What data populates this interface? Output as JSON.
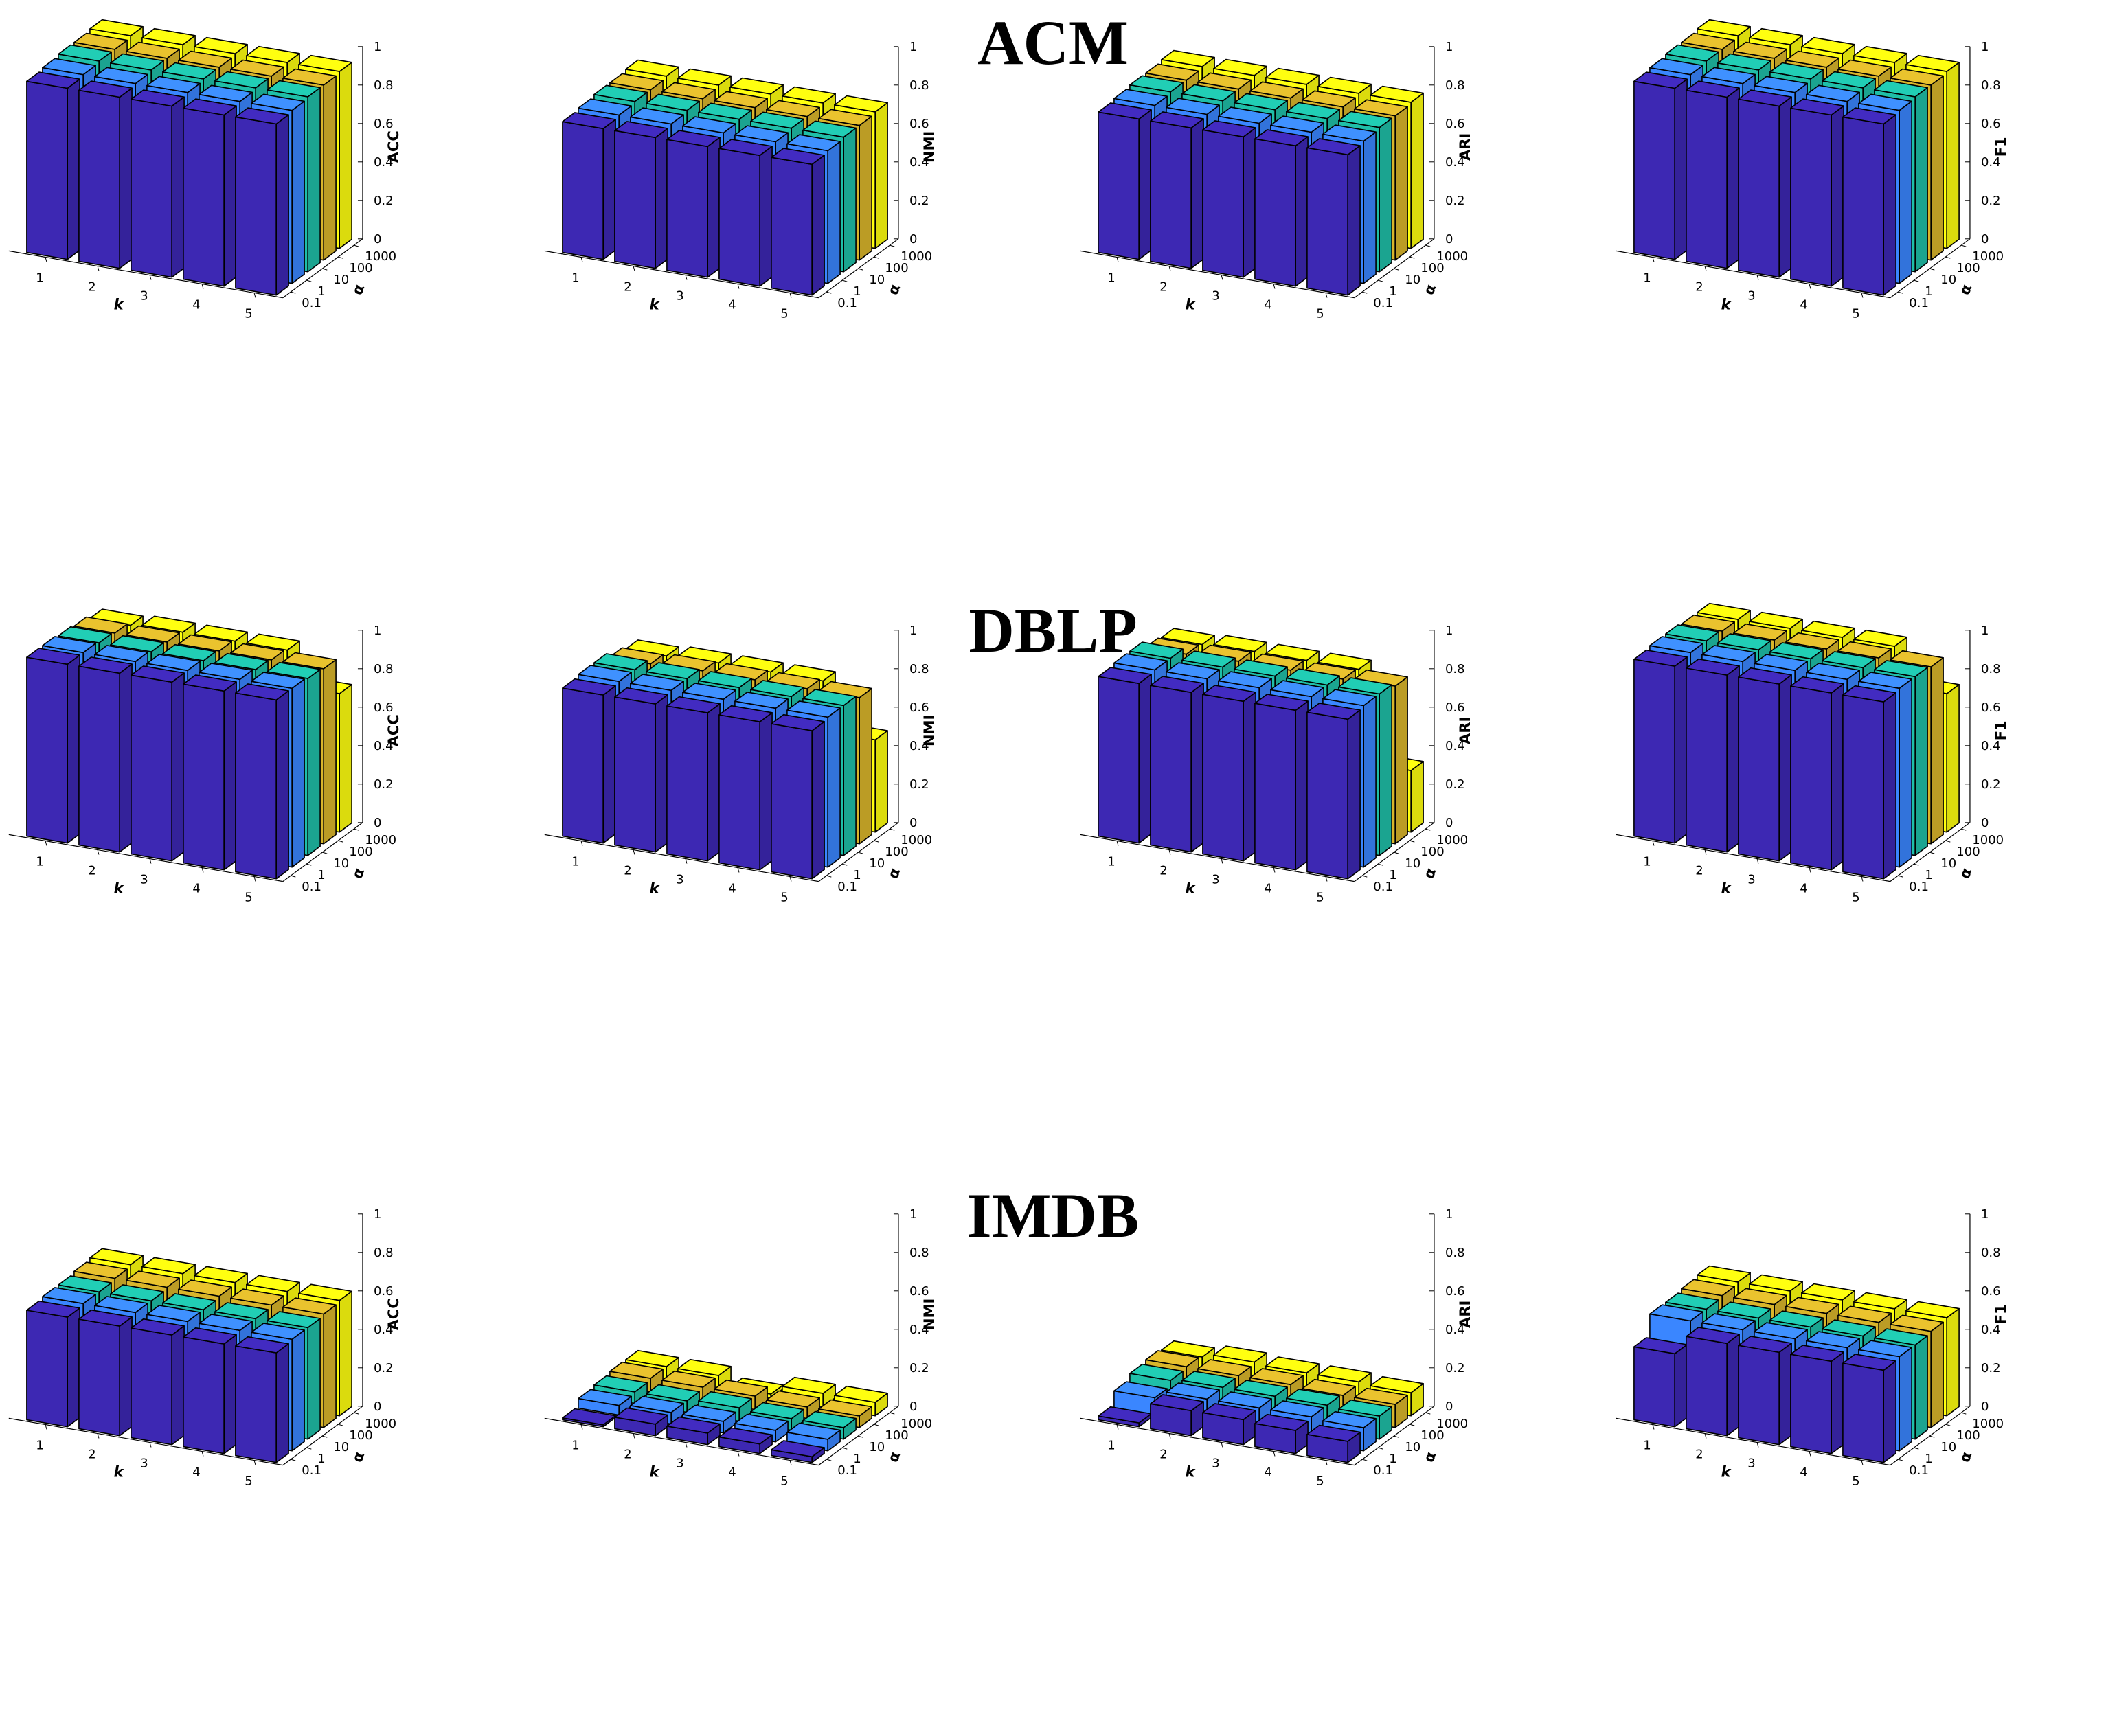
{
  "sections": [
    {
      "title": "ACM"
    },
    {
      "title": "DBLP"
    },
    {
      "title": "IMDB"
    }
  ],
  "colors": {
    "alpha_0.1": "#3d28b3",
    "alpha_1": "#3a86ff",
    "alpha_10": "#1fbfa8",
    "alpha_100": "#d9b52b",
    "alpha_1000": "#ffff0f",
    "edge": "#000000"
  },
  "chart_data": [
    {
      "dataset": "ACM",
      "metric": "ACC",
      "type": "bar3d",
      "xlabel": "k",
      "ylabel": "α",
      "zlabel": "ACC",
      "x": [
        1,
        2,
        3,
        4,
        5
      ],
      "y_categories": [
        "0.1",
        "1",
        "10",
        "100",
        "1000"
      ],
      "zlim": [
        0,
        1
      ],
      "z_ticks": [
        "0",
        "0.2",
        "0.4",
        "0.6",
        "0.8",
        "1"
      ],
      "series": [
        {
          "name": "0.1",
          "values": [
            0.89,
            0.89,
            0.89,
            0.89,
            0.89
          ]
        },
        {
          "name": "1",
          "values": [
            0.9,
            0.9,
            0.9,
            0.9,
            0.9
          ]
        },
        {
          "name": "10",
          "values": [
            0.91,
            0.91,
            0.91,
            0.91,
            0.91
          ]
        },
        {
          "name": "100",
          "values": [
            0.91,
            0.91,
            0.91,
            0.91,
            0.91
          ]
        },
        {
          "name": "1000",
          "values": [
            0.92,
            0.92,
            0.92,
            0.92,
            0.92
          ]
        }
      ]
    },
    {
      "dataset": "ACM",
      "metric": "NMI",
      "type": "bar3d",
      "xlabel": "k",
      "ylabel": "α",
      "zlabel": "NMI",
      "x": [
        1,
        2,
        3,
        4,
        5
      ],
      "y_categories": [
        "0.1",
        "1",
        "10",
        "100",
        "1000"
      ],
      "zlim": [
        0,
        1
      ],
      "z_ticks": [
        "0",
        "0.2",
        "0.4",
        "0.6",
        "0.8",
        "1"
      ],
      "series": [
        {
          "name": "0.1",
          "values": [
            0.68,
            0.68,
            0.68,
            0.68,
            0.68
          ]
        },
        {
          "name": "1",
          "values": [
            0.69,
            0.69,
            0.69,
            0.69,
            0.69
          ]
        },
        {
          "name": "10",
          "values": [
            0.7,
            0.7,
            0.7,
            0.7,
            0.7
          ]
        },
        {
          "name": "100",
          "values": [
            0.7,
            0.7,
            0.7,
            0.7,
            0.7
          ]
        },
        {
          "name": "1000",
          "values": [
            0.71,
            0.71,
            0.71,
            0.71,
            0.71
          ]
        }
      ]
    },
    {
      "dataset": "ACM",
      "metric": "ARI",
      "type": "bar3d",
      "xlabel": "k",
      "ylabel": "α",
      "zlabel": "ARI",
      "x": [
        1,
        2,
        3,
        4,
        5
      ],
      "y_categories": [
        "0.1",
        "1",
        "10",
        "100",
        "1000"
      ],
      "zlim": [
        0,
        1
      ],
      "z_ticks": [
        "0",
        "0.2",
        "0.4",
        "0.6",
        "0.8",
        "1"
      ],
      "series": [
        {
          "name": "0.1",
          "values": [
            0.73,
            0.73,
            0.73,
            0.73,
            0.73
          ]
        },
        {
          "name": "1",
          "values": [
            0.74,
            0.74,
            0.74,
            0.74,
            0.74
          ]
        },
        {
          "name": "10",
          "values": [
            0.75,
            0.75,
            0.75,
            0.75,
            0.75
          ]
        },
        {
          "name": "100",
          "values": [
            0.75,
            0.75,
            0.75,
            0.75,
            0.75
          ]
        },
        {
          "name": "1000",
          "values": [
            0.76,
            0.76,
            0.76,
            0.76,
            0.76
          ]
        }
      ]
    },
    {
      "dataset": "ACM",
      "metric": "F1",
      "type": "bar3d",
      "xlabel": "k",
      "ylabel": "α",
      "zlabel": "F1",
      "x": [
        1,
        2,
        3,
        4,
        5
      ],
      "y_categories": [
        "0.1",
        "1",
        "10",
        "100",
        "1000"
      ],
      "zlim": [
        0,
        1
      ],
      "z_ticks": [
        "0",
        "0.2",
        "0.4",
        "0.6",
        "0.8",
        "1"
      ],
      "series": [
        {
          "name": "0.1",
          "values": [
            0.89,
            0.89,
            0.89,
            0.89,
            0.89
          ]
        },
        {
          "name": "1",
          "values": [
            0.9,
            0.9,
            0.9,
            0.9,
            0.9
          ]
        },
        {
          "name": "10",
          "values": [
            0.91,
            0.91,
            0.91,
            0.91,
            0.91
          ]
        },
        {
          "name": "100",
          "values": [
            0.91,
            0.91,
            0.91,
            0.91,
            0.91
          ]
        },
        {
          "name": "1000",
          "values": [
            0.92,
            0.92,
            0.92,
            0.92,
            0.92
          ]
        }
      ]
    },
    {
      "dataset": "DBLP",
      "metric": "ACC",
      "type": "bar3d",
      "xlabel": "k",
      "ylabel": "α",
      "zlabel": "ACC",
      "x": [
        1,
        2,
        3,
        4,
        5
      ],
      "y_categories": [
        "0.1",
        "1",
        "10",
        "100",
        "1000"
      ],
      "zlim": [
        0,
        1
      ],
      "z_ticks": [
        "0",
        "0.2",
        "0.4",
        "0.6",
        "0.8",
        "1"
      ],
      "series": [
        {
          "name": "0.1",
          "values": [
            0.93,
            0.93,
            0.93,
            0.93,
            0.93
          ]
        },
        {
          "name": "1",
          "values": [
            0.93,
            0.93,
            0.93,
            0.93,
            0.93
          ]
        },
        {
          "name": "10",
          "values": [
            0.92,
            0.92,
            0.92,
            0.92,
            0.92
          ]
        },
        {
          "name": "100",
          "values": [
            0.91,
            0.91,
            0.91,
            0.91,
            0.91
          ]
        },
        {
          "name": "1000",
          "values": [
            0.89,
            0.9,
            0.9,
            0.9,
            0.72
          ]
        }
      ]
    },
    {
      "dataset": "DBLP",
      "metric": "NMI",
      "type": "bar3d",
      "xlabel": "k",
      "ylabel": "α",
      "zlabel": "NMI",
      "x": [
        1,
        2,
        3,
        4,
        5
      ],
      "y_categories": [
        "0.1",
        "1",
        "10",
        "100",
        "1000"
      ],
      "zlim": [
        0,
        1
      ],
      "z_ticks": [
        "0",
        "0.2",
        "0.4",
        "0.6",
        "0.8",
        "1"
      ],
      "series": [
        {
          "name": "0.1",
          "values": [
            0.77,
            0.77,
            0.77,
            0.77,
            0.77
          ]
        },
        {
          "name": "1",
          "values": [
            0.78,
            0.78,
            0.78,
            0.78,
            0.78
          ]
        },
        {
          "name": "10",
          "values": [
            0.78,
            0.78,
            0.78,
            0.78,
            0.78
          ]
        },
        {
          "name": "100",
          "values": [
            0.75,
            0.76,
            0.76,
            0.76,
            0.76
          ]
        },
        {
          "name": "1000",
          "values": [
            0.73,
            0.74,
            0.74,
            0.74,
            0.48
          ]
        }
      ]
    },
    {
      "dataset": "DBLP",
      "metric": "ARI",
      "type": "bar3d",
      "xlabel": "k",
      "ylabel": "α",
      "zlabel": "ARI",
      "x": [
        1,
        2,
        3,
        4,
        5
      ],
      "y_categories": [
        "0.1",
        "1",
        "10",
        "100",
        "1000"
      ],
      "zlim": [
        0,
        1
      ],
      "z_ticks": [
        "0",
        "0.2",
        "0.4",
        "0.6",
        "0.8",
        "1"
      ],
      "series": [
        {
          "name": "0.1",
          "values": [
            0.83,
            0.83,
            0.83,
            0.83,
            0.83
          ]
        },
        {
          "name": "1",
          "values": [
            0.84,
            0.84,
            0.84,
            0.84,
            0.84
          ]
        },
        {
          "name": "10",
          "values": [
            0.84,
            0.84,
            0.84,
            0.84,
            0.84
          ]
        },
        {
          "name": "100",
          "values": [
            0.8,
            0.81,
            0.81,
            0.81,
            0.82
          ]
        },
        {
          "name": "1000",
          "values": [
            0.79,
            0.8,
            0.8,
            0.8,
            0.32
          ]
        }
      ]
    },
    {
      "dataset": "DBLP",
      "metric": "F1",
      "type": "bar3d",
      "xlabel": "k",
      "ylabel": "α",
      "zlabel": "F1",
      "x": [
        1,
        2,
        3,
        4,
        5
      ],
      "y_categories": [
        "0.1",
        "1",
        "10",
        "100",
        "1000"
      ],
      "zlim": [
        0,
        1
      ],
      "z_ticks": [
        "0",
        "0.2",
        "0.4",
        "0.6",
        "0.8",
        "1"
      ],
      "series": [
        {
          "name": "0.1",
          "values": [
            0.92,
            0.92,
            0.92,
            0.92,
            0.92
          ]
        },
        {
          "name": "1",
          "values": [
            0.93,
            0.93,
            0.93,
            0.93,
            0.93
          ]
        },
        {
          "name": "10",
          "values": [
            0.93,
            0.93,
            0.93,
            0.93,
            0.93
          ]
        },
        {
          "name": "100",
          "values": [
            0.92,
            0.92,
            0.92,
            0.92,
            0.92
          ]
        },
        {
          "name": "1000",
          "values": [
            0.92,
            0.92,
            0.92,
            0.92,
            0.72
          ]
        }
      ]
    },
    {
      "dataset": "IMDB",
      "metric": "ACC",
      "type": "bar3d",
      "xlabel": "k",
      "ylabel": "α",
      "zlabel": "ACC",
      "x": [
        1,
        2,
        3,
        4,
        5
      ],
      "y_categories": [
        "0.1",
        "1",
        "10",
        "100",
        "1000"
      ],
      "zlim": [
        0,
        1
      ],
      "z_ticks": [
        "0",
        "0.2",
        "0.4",
        "0.6",
        "0.8",
        "1"
      ],
      "series": [
        {
          "name": "0.1",
          "values": [
            0.57,
            0.57,
            0.57,
            0.57,
            0.57
          ]
        },
        {
          "name": "1",
          "values": [
            0.58,
            0.58,
            0.58,
            0.58,
            0.58
          ]
        },
        {
          "name": "10",
          "values": [
            0.58,
            0.58,
            0.58,
            0.58,
            0.58
          ]
        },
        {
          "name": "100",
          "values": [
            0.59,
            0.59,
            0.59,
            0.59,
            0.59
          ]
        },
        {
          "name": "1000",
          "values": [
            0.6,
            0.6,
            0.6,
            0.6,
            0.6
          ]
        }
      ]
    },
    {
      "dataset": "IMDB",
      "metric": "NMI",
      "type": "bar3d",
      "xlabel": "k",
      "ylabel": "α",
      "zlabel": "NMI",
      "x": [
        1,
        2,
        3,
        4,
        5
      ],
      "y_categories": [
        "0.1",
        "1",
        "10",
        "100",
        "1000"
      ],
      "zlim": [
        0,
        1
      ],
      "z_ticks": [
        "0",
        "0.2",
        "0.4",
        "0.6",
        "0.8",
        "1"
      ],
      "series": [
        {
          "name": "0.1",
          "values": [
            0.01,
            0.06,
            0.06,
            0.05,
            0.03
          ]
        },
        {
          "name": "1",
          "values": [
            0.05,
            0.06,
            0.06,
            0.06,
            0.06
          ]
        },
        {
          "name": "10",
          "values": [
            0.06,
            0.06,
            0.07,
            0.06,
            0.06
          ]
        },
        {
          "name": "100",
          "values": [
            0.07,
            0.07,
            0.07,
            0.06,
            0.06
          ]
        },
        {
          "name": "1000",
          "values": [
            0.07,
            0.07,
            0.02,
            0.07,
            0.07
          ]
        }
      ]
    },
    {
      "dataset": "IMDB",
      "metric": "ARI",
      "type": "bar3d",
      "xlabel": "k",
      "ylabel": "α",
      "zlabel": "ARI",
      "x": [
        1,
        2,
        3,
        4,
        5
      ],
      "y_categories": [
        "0.1",
        "1",
        "10",
        "100",
        "1000"
      ],
      "zlim": [
        0,
        1
      ],
      "z_ticks": [
        "0",
        "0.2",
        "0.4",
        "0.6",
        "0.8",
        "1"
      ],
      "series": [
        {
          "name": "0.1",
          "values": [
            0.02,
            0.13,
            0.13,
            0.12,
            0.11
          ]
        },
        {
          "name": "1",
          "values": [
            0.09,
            0.13,
            0.13,
            0.13,
            0.12
          ]
        },
        {
          "name": "10",
          "values": [
            0.12,
            0.13,
            0.13,
            0.13,
            0.12
          ]
        },
        {
          "name": "100",
          "values": [
            0.13,
            0.13,
            0.13,
            0.12,
            0.12
          ]
        },
        {
          "name": "1000",
          "values": [
            0.12,
            0.14,
            0.13,
            0.13,
            0.12
          ]
        }
      ]
    },
    {
      "dataset": "IMDB",
      "metric": "F1",
      "type": "bar3d",
      "xlabel": "k",
      "ylabel": "α",
      "zlabel": "F1",
      "x": [
        1,
        2,
        3,
        4,
        5
      ],
      "y_categories": [
        "0.1",
        "1",
        "10",
        "100",
        "1000"
      ],
      "zlim": [
        0,
        1
      ],
      "z_ticks": [
        "0",
        "0.2",
        "0.4",
        "0.6",
        "0.8",
        "1"
      ],
      "series": [
        {
          "name": "0.1",
          "values": [
            0.38,
            0.48,
            0.48,
            0.48,
            0.48
          ]
        },
        {
          "name": "1",
          "values": [
            0.49,
            0.49,
            0.49,
            0.49,
            0.49
          ]
        },
        {
          "name": "10",
          "values": [
            0.49,
            0.49,
            0.49,
            0.49,
            0.49
          ]
        },
        {
          "name": "100",
          "values": [
            0.5,
            0.5,
            0.5,
            0.5,
            0.5
          ]
        },
        {
          "name": "1000",
          "values": [
            0.51,
            0.51,
            0.51,
            0.51,
            0.51
          ]
        }
      ]
    }
  ]
}
